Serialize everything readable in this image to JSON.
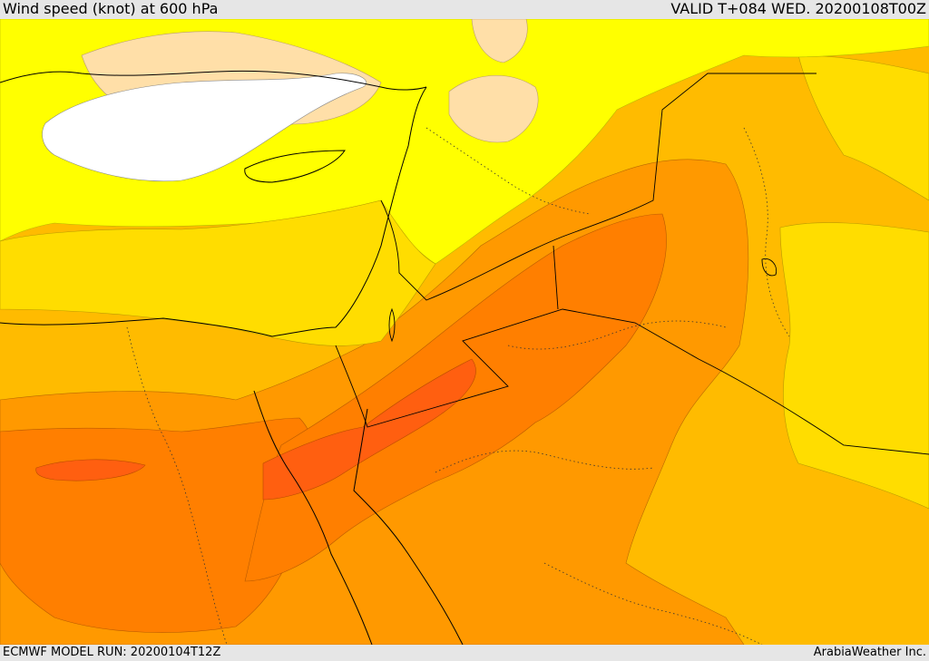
{
  "header": {
    "title": "Wind speed (knot) at 600 hPa",
    "valid": "VALID T+084 WED. 20200108T00Z"
  },
  "footer": {
    "model_run": "ECMWF MODEL RUN: 20200104T12Z",
    "credit": "ArabiaWeather Inc."
  },
  "colors": {
    "level_0": "#ffffff",
    "level_1": "#ffdfa8",
    "level_2": "#ffff00",
    "level_3": "#ffdd00",
    "level_4": "#ffbb00",
    "level_5": "#ff9900",
    "level_6": "#ff7f00",
    "level_7": "#ff5f10",
    "border": "#000000"
  }
}
